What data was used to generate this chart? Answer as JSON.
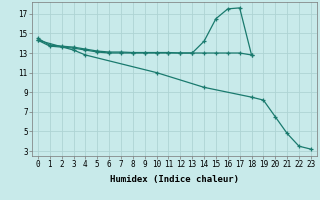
{
  "line1_x": [
    0,
    1,
    2,
    3,
    4,
    5,
    6,
    7,
    8,
    9,
    10,
    11,
    12,
    13,
    14,
    15,
    16,
    17,
    18
  ],
  "line1_y": [
    14.5,
    13.8,
    13.7,
    13.6,
    13.4,
    13.2,
    13.1,
    13.1,
    13.05,
    13.05,
    13.05,
    13.05,
    13.0,
    13.0,
    14.2,
    16.5,
    17.5,
    17.6,
    12.8
  ],
  "line2_x": [
    0,
    1,
    2,
    3,
    4,
    5,
    6,
    7,
    8,
    9,
    10,
    11,
    12,
    13,
    14,
    15,
    16,
    17,
    18
  ],
  "line2_y": [
    14.3,
    13.7,
    13.6,
    13.5,
    13.3,
    13.1,
    13.0,
    13.0,
    13.0,
    13.0,
    13.0,
    13.0,
    13.0,
    13.0,
    13.0,
    13.0,
    13.0,
    13.0,
    12.8
  ],
  "line3_x": [
    0,
    3,
    4,
    10,
    14,
    18,
    19,
    20,
    21,
    22,
    23
  ],
  "line3_y": [
    14.3,
    13.3,
    12.8,
    11.0,
    9.5,
    8.5,
    8.2,
    6.5,
    4.8,
    3.5,
    3.2
  ],
  "color": "#1a7a6e",
  "bg_color": "#c8eaea",
  "grid_color": "#aed4d4",
  "xlabel": "Humidex (Indice chaleur)",
  "xlim": [
    -0.5,
    23.5
  ],
  "ylim": [
    2.5,
    18.2
  ],
  "xticks": [
    0,
    1,
    2,
    3,
    4,
    5,
    6,
    7,
    8,
    9,
    10,
    11,
    12,
    13,
    14,
    15,
    16,
    17,
    18,
    19,
    20,
    21,
    22,
    23
  ],
  "yticks": [
    3,
    5,
    7,
    9,
    11,
    13,
    15,
    17
  ],
  "tick_fontsize": 5.5,
  "label_fontsize": 6.5
}
